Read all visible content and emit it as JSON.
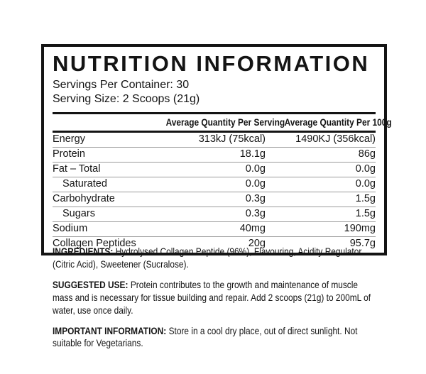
{
  "label": {
    "title": "NUTRITION INFORMATION",
    "servings_per_container": "Servings Per Container: 30",
    "serving_size": "Serving Size: 2 Scoops (21g)",
    "table": {
      "header_per_serving": "Average Quantity Per Serving",
      "header_per_100g": "Average Quantity Per 100g",
      "rows": [
        {
          "name": "Energy",
          "per_serving": "313kJ (75kcal)",
          "per_100g": "1490KJ (356kcal)",
          "indent": false
        },
        {
          "name": "Protein",
          "per_serving": "18.1g",
          "per_100g": "86g",
          "indent": false
        },
        {
          "name": "Fat – Total",
          "per_serving": "0.0g",
          "per_100g": "0.0g",
          "indent": false
        },
        {
          "name": "Saturated",
          "per_serving": "0.0g",
          "per_100g": "0.0g",
          "indent": true
        },
        {
          "name": "Carbohydrate",
          "per_serving": "0.3g",
          "per_100g": "1.5g",
          "indent": false
        },
        {
          "name": "Sugars",
          "per_serving": "0.3g",
          "per_100g": "1.5g",
          "indent": true
        },
        {
          "name": "Sodium",
          "per_serving": "40mg",
          "per_100g": "190mg",
          "indent": false
        },
        {
          "name": "Collagen Peptides",
          "per_serving": "20g",
          "per_100g": "95.7g",
          "indent": false
        }
      ]
    },
    "sections": [
      {
        "heading": "INGREDIENTS:",
        "body": "Hydrolysed Collagen Peptide (96%), Flavouring, Acidity Regulator (Citric Acid), Sweetener (Sucralose)."
      },
      {
        "heading": "SUGGESTED USE:",
        "body": "Protein contributes to the growth and maintenance of muscle mass and is necessary for tissue building and repair. Add 2 scoops (21g) to 200mL of water, use once daily."
      },
      {
        "heading": "IMPORTANT INFORMATION:",
        "body": "Store in a cool dry place, out of direct sunlight. Not suitable for Vegetarians."
      }
    ],
    "colors": {
      "background": "#ffffff",
      "text": "#141414",
      "box_border": "#141414",
      "thick_rule": "#141414",
      "row_separator": "#9b9b9b"
    }
  }
}
